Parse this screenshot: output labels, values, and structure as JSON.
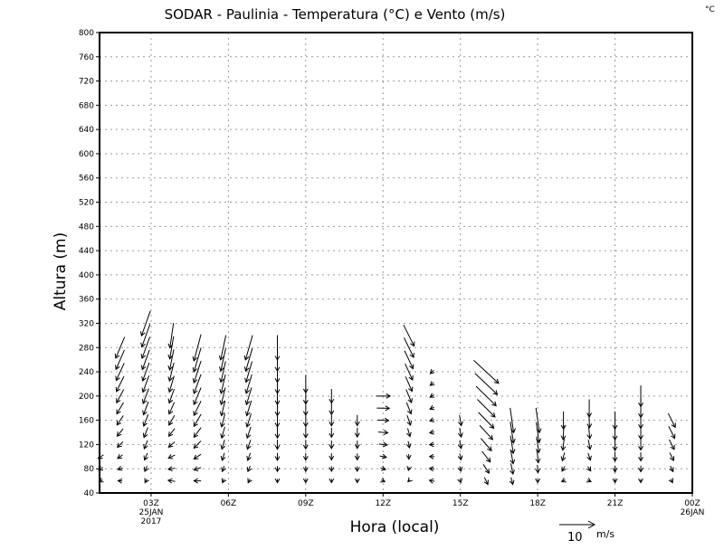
{
  "chart_data": {
    "type": "vector",
    "title": "SODAR - Paulinia - Temperatura (°C) e Vento (m/s)",
    "corner_unit": "°C",
    "xlabel": "Hora (local)",
    "ylabel": "Altura (m)",
    "xlim_hours": [
      1,
      24
    ],
    "ylim": [
      40,
      800
    ],
    "yticks": [
      40,
      80,
      120,
      160,
      200,
      240,
      280,
      320,
      360,
      400,
      440,
      480,
      520,
      560,
      600,
      640,
      680,
      720,
      760,
      800
    ],
    "xticks": [
      {
        "hour": 3,
        "label": "03Z",
        "sub1": "25JAN",
        "sub2": "2017"
      },
      {
        "hour": 6,
        "label": "06Z"
      },
      {
        "hour": 9,
        "label": "09Z"
      },
      {
        "hour": 12,
        "label": "12Z"
      },
      {
        "hour": 15,
        "label": "15Z"
      },
      {
        "hour": 18,
        "label": "18Z"
      },
      {
        "hour": 21,
        "label": "21Z"
      },
      {
        "hour": 24,
        "label": "00Z",
        "sub1": "26JAN"
      }
    ],
    "grid": true,
    "reference_vector": {
      "value": 10,
      "label": "10",
      "unit": "m/s"
    },
    "level_step_m": 20,
    "columns": [
      {
        "hour": 1.05,
        "h": [
          60,
          100
        ],
        "bottom": [
          -1,
          -0.5
        ],
        "top": [
          -1.5,
          -1
        ]
      },
      {
        "hour": 1.8,
        "h": [
          60,
          280
        ],
        "bottom": [
          -1.2,
          0.1
        ],
        "top": [
          -2.5,
          -6
        ]
      },
      {
        "hour": 2.8,
        "h": [
          60,
          320
        ],
        "bottom": [
          -0.5,
          -1
        ],
        "top": [
          -2.5,
          -7
        ]
      },
      {
        "hour": 3.8,
        "h": [
          60,
          300
        ],
        "bottom": [
          -2,
          0.3
        ],
        "top": [
          -1,
          -7
        ]
      },
      {
        "hour": 4.8,
        "h": [
          60,
          280
        ],
        "bottom": [
          -2,
          0
        ],
        "top": [
          -2,
          -7.5
        ]
      },
      {
        "hour": 5.8,
        "h": [
          60,
          280
        ],
        "bottom": [
          -0.5,
          -1
        ],
        "top": [
          -1.5,
          -7
        ]
      },
      {
        "hour": 6.8,
        "h": [
          60,
          280
        ],
        "bottom": [
          -0.5,
          -1
        ],
        "top": [
          -2,
          -7
        ]
      },
      {
        "hour": 7.9,
        "h": [
          60,
          280
        ],
        "bottom": [
          0,
          -1
        ],
        "top": [
          0,
          -7
        ]
      },
      {
        "hour": 9.0,
        "h": [
          60,
          220
        ],
        "bottom": [
          0,
          -1
        ],
        "top": [
          0,
          -5
        ]
      },
      {
        "hour": 10.0,
        "h": [
          60,
          200
        ],
        "bottom": [
          0,
          -1
        ],
        "top": [
          0,
          -4
        ]
      },
      {
        "hour": 11.0,
        "h": [
          60,
          160
        ],
        "bottom": [
          0,
          -1
        ],
        "top": [
          0,
          -3
        ]
      },
      {
        "hour": 12.0,
        "h": [
          60,
          200
        ],
        "bottom": [
          1,
          -0.5
        ],
        "top": [
          4,
          0
        ]
      },
      {
        "hour": 13.0,
        "h": [
          60,
          300
        ],
        "bottom": [
          -0.5,
          -0.5
        ],
        "top": [
          3,
          -6
        ]
      },
      {
        "hour": 13.9,
        "h": [
          60,
          240
        ],
        "bottom": [
          -1.5,
          0.3
        ],
        "top": [
          -1,
          -1
        ]
      },
      {
        "hour": 15.0,
        "h": [
          60,
          160
        ],
        "bottom": [
          0.3,
          -1
        ],
        "top": [
          0.5,
          -3
        ]
      },
      {
        "hour": 16.0,
        "h": [
          60,
          240
        ],
        "bottom": [
          1,
          -2
        ],
        "top": [
          7,
          -6.5
        ]
      },
      {
        "hour": 17.0,
        "h": [
          60,
          160
        ],
        "bottom": [
          0.5,
          -2
        ],
        "top": [
          1,
          -7
        ]
      },
      {
        "hour": 18.0,
        "h": [
          60,
          160
        ],
        "bottom": [
          0,
          -1
        ],
        "top": [
          1,
          -7
        ]
      },
      {
        "hour": 19.0,
        "h": [
          60,
          160
        ],
        "bottom": [
          -1,
          -0.5
        ],
        "top": [
          0,
          -5
        ]
      },
      {
        "hour": 20.0,
        "h": [
          60,
          180
        ],
        "bottom": [
          1,
          -0.5
        ],
        "top": [
          0,
          -5
        ]
      },
      {
        "hour": 21.0,
        "h": [
          60,
          160
        ],
        "bottom": [
          0,
          -1
        ],
        "top": [
          0,
          -5
        ]
      },
      {
        "hour": 22.0,
        "h": [
          60,
          200
        ],
        "bottom": [
          0,
          -1
        ],
        "top": [
          0,
          -6
        ]
      },
      {
        "hour": 23.2,
        "h": [
          60,
          160
        ],
        "bottom": [
          0.5,
          -1
        ],
        "top": [
          2,
          -4
        ]
      }
    ]
  }
}
